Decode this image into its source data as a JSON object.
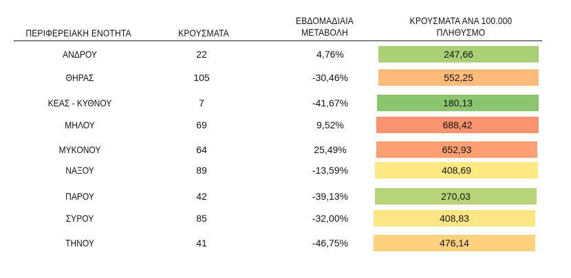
{
  "table": {
    "headers": {
      "region": "ΠΕΡΙΦΕΡΕΙΑΚΗ ΕΝΟΤΗΤΑ",
      "cases": "ΚΡΟΥΣΜΑΤΑ",
      "weekly_line1": "ΕΒΔΟΜΑΔΙΑΙΑ",
      "weekly_line2": "ΜΕΤΑΒΟΛΗ",
      "rate_line1": "ΚΡΟΥΣΜΑΤΑ ΑΝΑ 100.000",
      "rate_line2": "ΠΛΗΘΥΣΜΟ"
    },
    "rows": [
      {
        "region": "ΑΝΔΡΟΥ",
        "cases": "22",
        "weekly": "4,76%",
        "rate": "247,66",
        "color": "#a9d073"
      },
      {
        "region": "ΘΗΡΑΣ",
        "cases": "105",
        "weekly": "-30,46%",
        "rate": "552,25",
        "color": "#fdbb7b"
      },
      {
        "region": "ΚΕΑΣ - ΚΥΘΝΟΥ",
        "cases": "7",
        "weekly": "-41,67%",
        "rate": "180,13",
        "color": "#8cc66f"
      },
      {
        "region": "ΜΗΛΟΥ",
        "cases": "69",
        "weekly": "9,52%",
        "rate": "688,42",
        "color": "#f9926e"
      },
      {
        "region": "ΜΥΚΟΝΟΥ",
        "cases": "64",
        "weekly": "25,49%",
        "rate": "652,93",
        "color": "#fb9f73"
      },
      {
        "region": "ΝΑΞΟΥ",
        "cases": "89",
        "weekly": "-13,59%",
        "rate": "408,69",
        "color": "#fde883"
      },
      {
        "region": "ΠΑΡΟΥ",
        "cases": "42",
        "weekly": "-39,13%",
        "rate": "270,03",
        "color": "#b7d578"
      },
      {
        "region": "ΣΥΡΟΥ",
        "cases": "85",
        "weekly": "-32,00%",
        "rate": "408,83",
        "color": "#fce683"
      },
      {
        "region": "ΤΗΝΟΥ",
        "cases": "41",
        "weekly": "-46,75%",
        "rate": "476,14",
        "color": "#fdd17e"
      }
    ]
  }
}
